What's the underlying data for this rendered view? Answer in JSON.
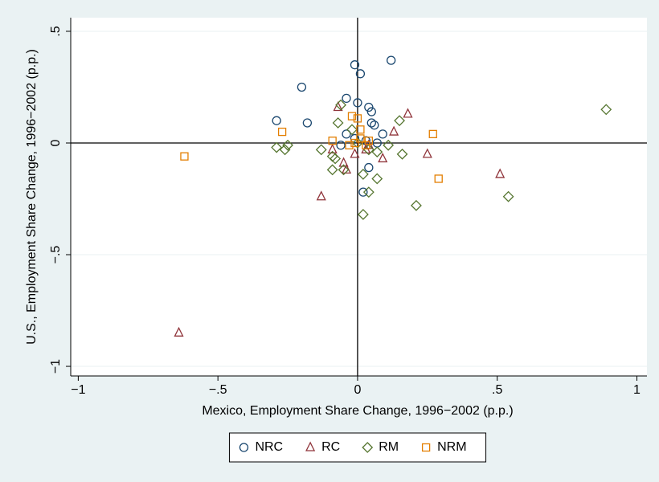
{
  "chart_data": {
    "type": "scatter",
    "x_label": "Mexico, Employment Share Change, 1996−2002 (p.p.)",
    "y_label": "U.S., Employment Share Change, 1996−2002 (p.p.)",
    "xlim": [
      -1.027,
      1.036
    ],
    "ylim": [
      -1.043,
      0.561
    ],
    "xticks": [
      {
        "value": -1,
        "label": "−1"
      },
      {
        "value": -0.5,
        "label": "−.5"
      },
      0,
      {
        "value": 0.5,
        "label": ".5"
      },
      1
    ],
    "yticks": [
      {
        "value": -1,
        "label": "−1"
      },
      {
        "value": -0.5,
        "label": "−.5"
      },
      0,
      {
        "value": 0.5,
        "label": ".5"
      }
    ],
    "grid": "y",
    "reference_lines": {
      "x": 0,
      "y": 0
    },
    "legend_position": "bottom",
    "series": [
      {
        "name": "NRC",
        "color": "#1a476f",
        "marker": "circle",
        "x": [
          -0.01,
          0.12,
          0.01,
          -0.2,
          -0.29,
          -0.18,
          -0.04,
          0.0,
          0.04,
          0.05,
          0.05,
          0.06,
          0.09,
          0.04,
          0.02,
          -0.04,
          -0.06,
          0.03,
          -0.01,
          0.07
        ],
        "y": [
          0.35,
          0.37,
          0.31,
          0.25,
          0.1,
          0.09,
          0.2,
          0.18,
          0.16,
          0.14,
          0.09,
          0.08,
          0.04,
          -0.11,
          -0.22,
          0.04,
          -0.01,
          0.01,
          0.02,
          0.0
        ]
      },
      {
        "name": "RC",
        "color": "#90353b",
        "marker": "triangle",
        "x": [
          -0.64,
          -0.13,
          0.51,
          0.25,
          0.18,
          0.13,
          -0.07,
          -0.05,
          -0.04,
          0.09,
          -0.01,
          -0.09,
          0.04,
          0.03
        ],
        "y": [
          -0.85,
          -0.24,
          -0.14,
          -0.05,
          0.13,
          0.05,
          0.16,
          -0.09,
          -0.12,
          -0.07,
          -0.05,
          -0.03,
          -0.01,
          -0.03
        ]
      },
      {
        "name": "RM",
        "color": "#55752f",
        "marker": "diamond",
        "x": [
          0.89,
          0.54,
          0.21,
          0.02,
          0.04,
          0.07,
          0.02,
          -0.09,
          -0.05,
          -0.29,
          -0.26,
          -0.25,
          -0.13,
          -0.07,
          -0.06,
          0.15,
          0.16,
          0.11,
          -0.02,
          -0.09,
          -0.08,
          0.0,
          0.04,
          0.07
        ],
        "y": [
          0.15,
          -0.24,
          -0.28,
          -0.32,
          -0.22,
          -0.16,
          -0.14,
          -0.12,
          -0.12,
          -0.02,
          -0.03,
          -0.01,
          -0.03,
          0.09,
          0.17,
          0.1,
          -0.05,
          -0.01,
          0.06,
          -0.06,
          -0.07,
          0.0,
          -0.03,
          -0.04
        ]
      },
      {
        "name": "NRM",
        "color": "#e37e00",
        "marker": "square",
        "x": [
          -0.62,
          -0.27,
          0.27,
          0.29,
          -0.02,
          0.0,
          0.01,
          0.01,
          -0.01,
          0.03,
          0.04,
          -0.03,
          -0.09
        ],
        "y": [
          -0.06,
          0.05,
          0.04,
          -0.16,
          0.12,
          0.11,
          0.06,
          0.02,
          0.0,
          -0.01,
          0.01,
          -0.01,
          0.01
        ]
      }
    ]
  }
}
